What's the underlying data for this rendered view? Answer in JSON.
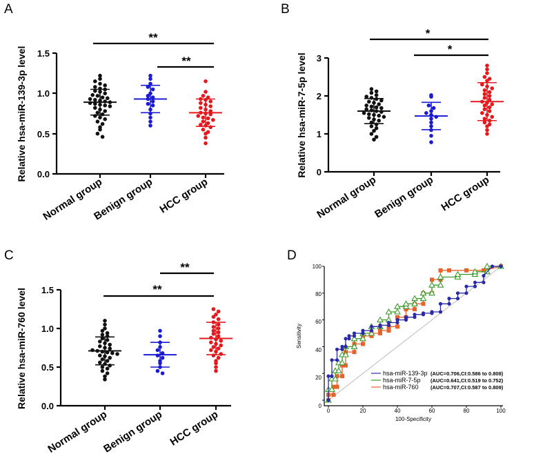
{
  "panels": {
    "A": {
      "label": "A",
      "ylabel": "Relative hsa-miR-139-3p level",
      "yticks": [
        "0.0",
        "0.5",
        "1.0",
        "1.5"
      ],
      "categories": [
        "Normal group",
        "Benign group",
        "HCC group"
      ],
      "significance": [
        "**",
        "**"
      ]
    },
    "B": {
      "label": "B",
      "ylabel": "Relative hsa-miR-7-5p level",
      "yticks": [
        "0",
        "1",
        "2",
        "3"
      ],
      "categories": [
        "Normal group",
        "Benign group",
        "HCC group"
      ],
      "significance": [
        "*",
        "*"
      ]
    },
    "C": {
      "label": "C",
      "ylabel": "Relative hsa-miR-760 level",
      "yticks": [
        "0.0",
        "0.5",
        "1.0",
        "1.5"
      ],
      "categories": [
        "Normal group",
        "Benign group",
        "HCC group"
      ],
      "significance": [
        "**",
        "**"
      ]
    },
    "D": {
      "label": "D",
      "xlabel": "100-Specificity",
      "ylabel": "Sensitivity",
      "ticks": [
        "0",
        "20",
        "40",
        "60",
        "80",
        "100"
      ],
      "legend": [
        {
          "name": "hsa-miR-139-3p",
          "auc": "(AUC=0.706,CI:0.586 to 0.808)"
        },
        {
          "name": "hsa-miR-7-5p",
          "auc": "(AUC=0.641,CI:0.519 to 0.752)"
        },
        {
          "name": "hsa-miR-760",
          "auc": "(AUC=0.707,CI:0.587 to 0.809)"
        }
      ]
    }
  },
  "colors": {
    "normal": "#111111",
    "benign": "#1a1ad6",
    "hcc": "#e3191e",
    "roc139": "#2a2aa8",
    "roc75": "#3a9b2a",
    "roc760": "#e8622c",
    "reference": "#bbbbbb"
  },
  "chart_data": [
    {
      "type": "scatter",
      "title": "A",
      "ylabel": "Relative hsa-miR-139-3p level",
      "categories": [
        "Normal group",
        "Benign group",
        "HCC group"
      ],
      "ylim": [
        0,
        1.5
      ],
      "yticks": [
        0,
        0.5,
        1.0,
        1.5
      ],
      "series": [
        {
          "name": "Normal group",
          "mean": 0.89,
          "sd": 0.16,
          "values": [
            1.22,
            1.18,
            1.15,
            1.12,
            1.1,
            1.08,
            1.06,
            1.05,
            1.03,
            1.02,
            1.0,
            0.98,
            0.97,
            0.95,
            0.94,
            0.93,
            0.92,
            0.91,
            0.9,
            0.89,
            0.88,
            0.87,
            0.86,
            0.85,
            0.84,
            0.82,
            0.8,
            0.78,
            0.76,
            0.74,
            0.72,
            0.7,
            0.68,
            0.65,
            0.62,
            0.58,
            0.55,
            0.5,
            0.46
          ]
        },
        {
          "name": "Benign group",
          "mean": 0.93,
          "sd": 0.17,
          "values": [
            1.22,
            1.18,
            1.12,
            1.08,
            1.05,
            1.0,
            0.97,
            0.95,
            0.93,
            0.9,
            0.87,
            0.85,
            0.8,
            0.75,
            0.7,
            0.65,
            0.6
          ]
        },
        {
          "name": "HCC group",
          "mean": 0.76,
          "sd": 0.17,
          "values": [
            1.15,
            1.02,
            0.97,
            0.95,
            0.93,
            0.92,
            0.9,
            0.88,
            0.86,
            0.84,
            0.82,
            0.8,
            0.78,
            0.76,
            0.75,
            0.74,
            0.72,
            0.7,
            0.69,
            0.67,
            0.65,
            0.63,
            0.61,
            0.6,
            0.58,
            0.55,
            0.52,
            0.5,
            0.45,
            0.38
          ]
        }
      ],
      "significance": [
        {
          "from": "Normal group",
          "to": "HCC group",
          "label": "**"
        },
        {
          "from": "Benign group",
          "to": "HCC group",
          "label": "**"
        }
      ]
    },
    {
      "type": "scatter",
      "title": "B",
      "ylabel": "Relative hsa-miR-7-5p level",
      "categories": [
        "Normal group",
        "Benign group",
        "HCC group"
      ],
      "ylim": [
        0,
        3
      ],
      "yticks": [
        0,
        1,
        2,
        3
      ],
      "series": [
        {
          "name": "Normal group",
          "mean": 1.6,
          "sd": 0.33,
          "values": [
            2.18,
            2.12,
            2.08,
            2.02,
            1.98,
            1.95,
            1.92,
            1.88,
            1.85,
            1.82,
            1.78,
            1.75,
            1.72,
            1.7,
            1.68,
            1.65,
            1.62,
            1.6,
            1.58,
            1.55,
            1.52,
            1.5,
            1.48,
            1.45,
            1.42,
            1.38,
            1.35,
            1.3,
            1.25,
            1.2,
            1.15,
            1.08,
            1.0,
            0.92,
            0.85
          ]
        },
        {
          "name": "Benign group",
          "mean": 1.47,
          "sd": 0.36,
          "values": [
            2.02,
            1.98,
            1.75,
            1.68,
            1.6,
            1.55,
            1.5,
            1.45,
            1.4,
            1.3,
            1.2,
            1.1,
            0.95,
            0.78
          ]
        },
        {
          "name": "HCC group",
          "mean": 1.85,
          "sd": 0.5,
          "values": [
            2.8,
            2.7,
            2.6,
            2.5,
            2.45,
            2.4,
            2.3,
            2.25,
            2.2,
            2.15,
            2.1,
            2.05,
            2.0,
            1.95,
            1.9,
            1.85,
            1.82,
            1.78,
            1.75,
            1.7,
            1.65,
            1.6,
            1.55,
            1.5,
            1.45,
            1.4,
            1.35,
            1.3,
            1.25,
            1.2,
            1.1,
            1.0
          ]
        }
      ],
      "significance": [
        {
          "from": "Normal group",
          "to": "HCC group",
          "label": "*"
        },
        {
          "from": "Benign group",
          "to": "HCC group",
          "label": "*"
        }
      ]
    },
    {
      "type": "scatter",
      "title": "C",
      "ylabel": "Relative hsa-miR-760 level",
      "categories": [
        "Normal group",
        "Benign group",
        "HCC group"
      ],
      "ylim": [
        0,
        1.5
      ],
      "yticks": [
        0,
        0.5,
        1.0,
        1.5
      ],
      "series": [
        {
          "name": "Normal group",
          "mean": 0.71,
          "sd": 0.18,
          "values": [
            1.1,
            1.05,
            1.0,
            0.97,
            0.94,
            0.92,
            0.9,
            0.87,
            0.85,
            0.83,
            0.81,
            0.79,
            0.77,
            0.75,
            0.74,
            0.72,
            0.71,
            0.7,
            0.69,
            0.68,
            0.67,
            0.65,
            0.64,
            0.62,
            0.6,
            0.58,
            0.56,
            0.54,
            0.52,
            0.5,
            0.48,
            0.45,
            0.42,
            0.38,
            0.34
          ]
        },
        {
          "name": "Benign group",
          "mean": 0.66,
          "sd": 0.16,
          "values": [
            0.97,
            0.9,
            0.82,
            0.76,
            0.72,
            0.68,
            0.65,
            0.62,
            0.58,
            0.55,
            0.5,
            0.45,
            0.42
          ]
        },
        {
          "name": "HCC group",
          "mean": 0.87,
          "sd": 0.21,
          "values": [
            1.25,
            1.22,
            1.18,
            1.15,
            1.12,
            1.08,
            1.05,
            1.02,
            1.0,
            0.97,
            0.95,
            0.93,
            0.9,
            0.88,
            0.86,
            0.84,
            0.82,
            0.8,
            0.78,
            0.76,
            0.74,
            0.72,
            0.7,
            0.67,
            0.65,
            0.62,
            0.58,
            0.55,
            0.5,
            0.45
          ]
        }
      ],
      "significance": [
        {
          "from": "Benign group",
          "to": "HCC group",
          "label": "**"
        },
        {
          "from": "Normal group",
          "to": "HCC group",
          "label": "**"
        }
      ]
    },
    {
      "type": "line",
      "title": "D",
      "xlabel": "100-Specificity",
      "ylabel": "Sensitivity",
      "xlim": [
        0,
        100
      ],
      "ylim": [
        0,
        100
      ],
      "reference_line": true,
      "series": [
        {
          "name": "hsa-miR-139-3p",
          "auc": 0.706,
          "ci": [
            0.586,
            0.808
          ],
          "x": [
            0,
            0,
            2,
            2,
            5,
            5,
            8,
            8,
            10,
            10,
            12,
            12,
            15,
            15,
            20,
            20,
            25,
            25,
            30,
            30,
            35,
            35,
            40,
            40,
            45,
            45,
            50,
            50,
            55,
            55,
            60,
            60,
            65,
            65,
            70,
            70,
            75,
            75,
            80,
            80,
            85,
            85,
            90,
            90,
            95,
            100
          ],
          "y": [
            0,
            18,
            18,
            30,
            30,
            38,
            38,
            40,
            40,
            46,
            46,
            48,
            48,
            50,
            50,
            52,
            52,
            55,
            55,
            56,
            56,
            58,
            58,
            60,
            60,
            62,
            62,
            64,
            64,
            65,
            65,
            66,
            66,
            72,
            72,
            76,
            76,
            80,
            80,
            85,
            85,
            88,
            88,
            93,
            100,
            100
          ]
        },
        {
          "name": "hsa-miR-7-5p",
          "auc": 0.641,
          "ci": [
            0.519,
            0.752
          ],
          "x": [
            0,
            0,
            2,
            2,
            4,
            4,
            6,
            6,
            8,
            8,
            10,
            10,
            15,
            15,
            20,
            20,
            25,
            25,
            30,
            30,
            35,
            35,
            40,
            40,
            45,
            45,
            50,
            50,
            55,
            55,
            60,
            60,
            65,
            65,
            75,
            75,
            85,
            85,
            92,
            92,
            100
          ],
          "y": [
            0,
            8,
            8,
            16,
            16,
            22,
            22,
            28,
            28,
            34,
            34,
            40,
            40,
            46,
            46,
            50,
            50,
            55,
            55,
            60,
            60,
            66,
            66,
            70,
            70,
            72,
            72,
            76,
            76,
            80,
            80,
            86,
            86,
            92,
            92,
            94,
            94,
            96,
            96,
            100,
            100
          ]
        },
        {
          "name": "hsa-miR-760",
          "auc": 0.707,
          "ci": [
            0.587,
            0.809
          ],
          "x": [
            0,
            0,
            3,
            3,
            5,
            5,
            8,
            8,
            10,
            10,
            15,
            15,
            20,
            20,
            25,
            25,
            30,
            30,
            35,
            35,
            40,
            40,
            45,
            45,
            50,
            50,
            55,
            55,
            60,
            60,
            65,
            65,
            70,
            80,
            90,
            100
          ],
          "y": [
            0,
            4,
            4,
            10,
            10,
            18,
            18,
            26,
            26,
            36,
            36,
            42,
            42,
            48,
            48,
            50,
            50,
            52,
            52,
            55,
            55,
            62,
            62,
            68,
            68,
            72,
            72,
            80,
            80,
            90,
            90,
            97,
            97,
            97,
            97,
            100
          ]
        }
      ]
    }
  ]
}
